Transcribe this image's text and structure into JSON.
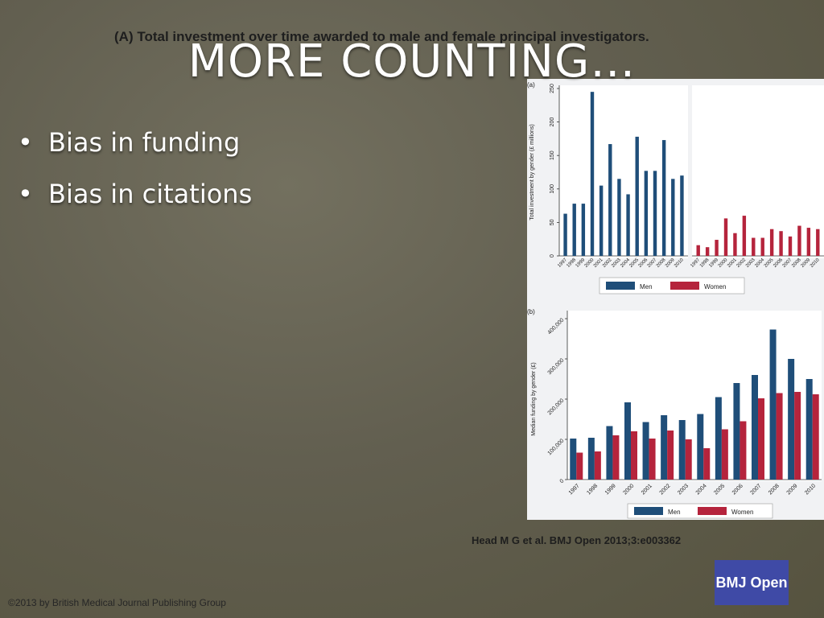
{
  "slide": {
    "title": "MORE COUNTING…",
    "bullets": [
      "Bias in funding",
      "Bias in citations"
    ]
  },
  "figure": {
    "title": "(A) Total investment over time awarded to male and female principal investigators.",
    "citation": "Head M G et al. BMJ Open 2013;3:e003362",
    "copyright": "©2013 by British Medical Journal Publishing Group",
    "logo": "BMJ Open"
  },
  "colors": {
    "men": "#1f4e79",
    "women": "#b5243c"
  },
  "chart_data": [
    {
      "type": "bar",
      "panel_label": "(a)",
      "ylabel": "Total investment by gender (£ millions)",
      "ylim": [
        0,
        250
      ],
      "yticks": [
        0,
        50,
        100,
        150,
        200,
        250
      ],
      "categories": [
        "1997",
        "1998",
        "1999",
        "2000",
        "2001",
        "2002",
        "2003",
        "2004",
        "2005",
        "2006",
        "2007",
        "2008",
        "2009",
        "2010"
      ],
      "series": [
        {
          "name": "Men",
          "values": [
            63,
            78,
            78,
            245,
            105,
            167,
            115,
            92,
            178,
            127,
            127,
            173,
            115,
            120
          ]
        },
        {
          "name": "Women",
          "values": [
            16,
            13,
            24,
            56,
            34,
            60,
            27,
            27,
            40,
            37,
            29,
            45,
            42,
            40
          ]
        }
      ],
      "layout": "faceted",
      "legend": [
        "Men",
        "Women"
      ],
      "legend_position": "bottom"
    },
    {
      "type": "bar",
      "panel_label": "(b)",
      "ylabel": "Median funding by gender (£)",
      "ylim": [
        0,
        400000
      ],
      "yticks": [
        0,
        100000,
        200000,
        300000,
        400000
      ],
      "ytick_labels": [
        "0",
        "100,000",
        "200,000",
        "300,000",
        "400,000"
      ],
      "categories": [
        "1997",
        "1998",
        "1999",
        "2000",
        "2001",
        "2002",
        "2003",
        "2004",
        "2005",
        "2006",
        "2007",
        "2008",
        "2009",
        "2010"
      ],
      "series": [
        {
          "name": "Men",
          "values": [
            102000,
            104000,
            133000,
            192000,
            143000,
            160000,
            148000,
            163000,
            205000,
            240000,
            260000,
            373000,
            300000,
            250000
          ]
        },
        {
          "name": "Women",
          "values": [
            67000,
            70000,
            110000,
            120000,
            102000,
            122000,
            100000,
            78000,
            125000,
            145000,
            202000,
            215000,
            218000,
            212000
          ]
        }
      ],
      "layout": "grouped",
      "legend": [
        "Men",
        "Women"
      ],
      "legend_position": "bottom"
    }
  ]
}
